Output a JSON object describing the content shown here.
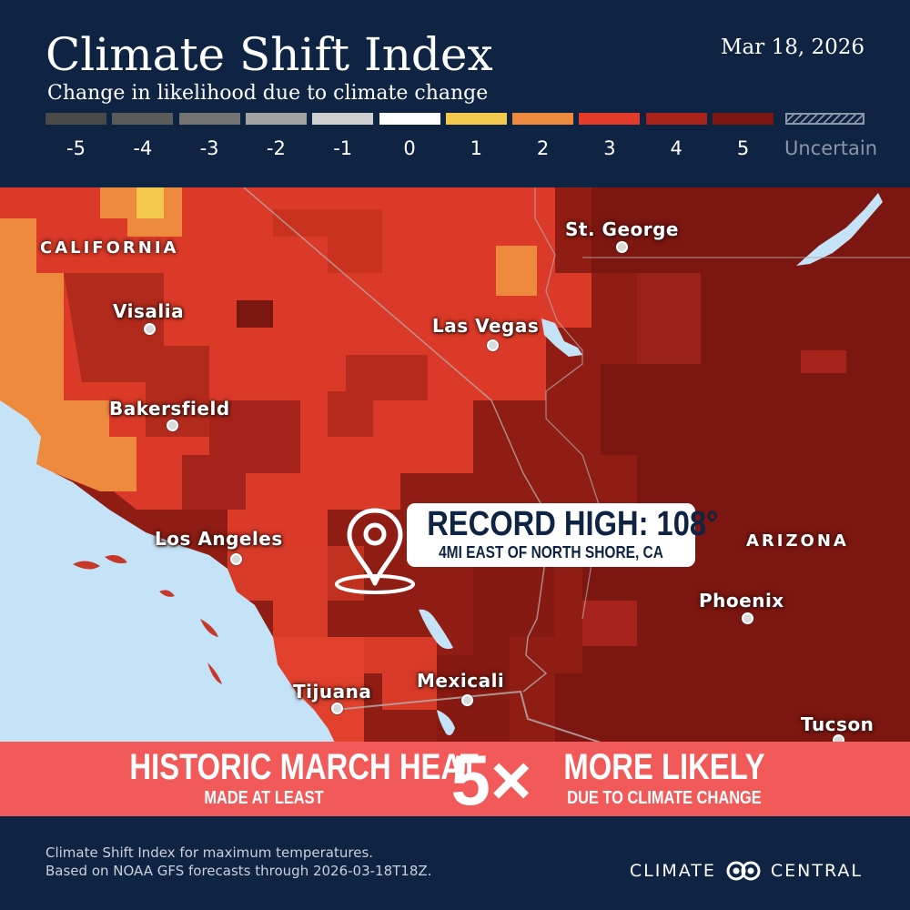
{
  "header": {
    "title": "Climate Shift Index",
    "subtitle": "Change in likelihood due to climate change",
    "date": "Mar 18, 2026"
  },
  "legend": [
    {
      "label": "-5",
      "color": "#4a4a4a"
    },
    {
      "label": "-4",
      "color": "#5b5b5b"
    },
    {
      "label": "-3",
      "color": "#737373"
    },
    {
      "label": "-2",
      "color": "#a3a3a3"
    },
    {
      "label": "-1",
      "color": "#cfcfcf"
    },
    {
      "label": "0",
      "color": "#ffffff"
    },
    {
      "label": "1",
      "color": "#f2c94c"
    },
    {
      "label": "2",
      "color": "#ee8a3e"
    },
    {
      "label": "3",
      "color": "#e23b2a"
    },
    {
      "label": "4",
      "color": "#a7231a"
    },
    {
      "label": "5",
      "color": "#7c1610"
    },
    {
      "label": "Uncertain",
      "color": "#8a97a8"
    }
  ],
  "map": {
    "regions": {
      "california": "CALIFORNIA",
      "arizona": "ARIZONA"
    },
    "cities": {
      "st_george": "St. George",
      "visalia": "Visalia",
      "las_vegas": "Las Vegas",
      "bakersfield": "Bakersfield",
      "los_angeles": "Los Angeles",
      "phoenix": "Phoenix",
      "tijuana": "Tijuana",
      "mexicali": "Mexicali",
      "tucson": "Tucson"
    },
    "ocean_color": "#c5e3f6",
    "record": {
      "title": "RECORD HIGH: 108°",
      "location": "4MI EAST OF NORTH SHORE, CA"
    }
  },
  "banner": {
    "left_line1": "HISTORIC MARCH HEAT",
    "left_line2": "MADE AT LEAST",
    "multiplier": "5×",
    "right_line1": "MORE LIKELY",
    "right_line2": "DUE TO CLIMATE CHANGE",
    "color": "#f25a5a"
  },
  "footer": {
    "line1": "Climate Shift Index for maximum temperatures.",
    "line2": "Based on NOAA GFS forecasts through 2026-03-18T18Z.",
    "brand_left": "CLIMATE",
    "brand_right": "CENTRAL"
  }
}
